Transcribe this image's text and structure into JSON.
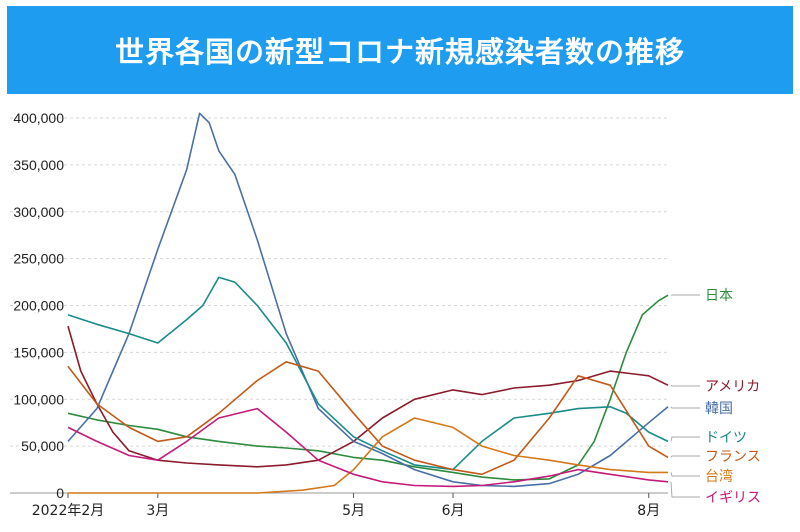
{
  "header": {
    "title": "世界各国の新型コロナ新規感染者数の推移"
  },
  "chart_data": {
    "type": "line",
    "title": "世界各国の新型コロナ新規感染者数の推移",
    "ylim": [
      0,
      400000
    ],
    "y_ticks": [
      0,
      50000,
      100000,
      150000,
      200000,
      250000,
      300000,
      350000,
      400000
    ],
    "y_tick_labels": [
      "0",
      "50,000",
      "100,000",
      "150,000",
      "200,000",
      "250,000",
      "300,000",
      "350,000",
      "400,000"
    ],
    "x_domain": [
      "2022-02-01",
      "2022-08-07"
    ],
    "x_ticks": [
      "2022-02-01",
      "2022-03-01",
      "2022-05-01",
      "2022-06-01",
      "2022-08-01"
    ],
    "x_tick_labels": [
      "2022年2月",
      "3月",
      "5月",
      "6月",
      "8月"
    ],
    "grid": true,
    "legend": "right-end labels",
    "series": [
      {
        "name": "日本",
        "color": "#2e8b3e",
        "x": [
          "2022-02-01",
          "2022-02-10",
          "2022-02-20",
          "2022-03-01",
          "2022-03-10",
          "2022-03-20",
          "2022-04-01",
          "2022-04-10",
          "2022-04-20",
          "2022-05-01",
          "2022-05-10",
          "2022-05-20",
          "2022-06-01",
          "2022-06-10",
          "2022-06-20",
          "2022-07-01",
          "2022-07-10",
          "2022-07-15",
          "2022-07-20",
          "2022-07-25",
          "2022-07-30",
          "2022-08-04",
          "2022-08-07"
        ],
        "values": [
          85000,
          78000,
          72000,
          68000,
          60000,
          55000,
          50000,
          48000,
          45000,
          38000,
          35000,
          28000,
          22000,
          17000,
          14000,
          15000,
          30000,
          55000,
          100000,
          150000,
          190000,
          205000,
          211000
        ]
      },
      {
        "name": "アメリカ",
        "color": "#8b1a2b",
        "x": [
          "2022-02-01",
          "2022-02-05",
          "2022-02-10",
          "2022-02-15",
          "2022-02-20",
          "2022-03-01",
          "2022-03-10",
          "2022-03-20",
          "2022-04-01",
          "2022-04-10",
          "2022-04-20",
          "2022-05-01",
          "2022-05-10",
          "2022-05-20",
          "2022-06-01",
          "2022-06-10",
          "2022-06-20",
          "2022-07-01",
          "2022-07-10",
          "2022-07-20",
          "2022-08-01",
          "2022-08-07"
        ],
        "values": [
          178000,
          130000,
          95000,
          65000,
          45000,
          35000,
          32000,
          30000,
          28000,
          30000,
          35000,
          55000,
          80000,
          100000,
          110000,
          105000,
          112000,
          115000,
          120000,
          130000,
          125000,
          115000
        ]
      },
      {
        "name": "韓国",
        "color": "#4a6fa5",
        "x": [
          "2022-02-01",
          "2022-02-10",
          "2022-02-20",
          "2022-03-01",
          "2022-03-10",
          "2022-03-14",
          "2022-03-17",
          "2022-03-20",
          "2022-03-25",
          "2022-04-01",
          "2022-04-10",
          "2022-04-20",
          "2022-05-01",
          "2022-05-10",
          "2022-05-20",
          "2022-06-01",
          "2022-06-10",
          "2022-06-20",
          "2022-07-01",
          "2022-07-10",
          "2022-07-20",
          "2022-08-01",
          "2022-08-07"
        ],
        "values": [
          55000,
          90000,
          170000,
          260000,
          345000,
          405000,
          395000,
          365000,
          340000,
          270000,
          170000,
          90000,
          55000,
          42000,
          25000,
          12000,
          8000,
          7000,
          10000,
          20000,
          40000,
          75000,
          92000
        ]
      },
      {
        "name": "ドイツ",
        "color": "#1a8a8a",
        "x": [
          "2022-02-01",
          "2022-02-10",
          "2022-02-20",
          "2022-03-01",
          "2022-03-10",
          "2022-03-15",
          "2022-03-20",
          "2022-03-25",
          "2022-04-01",
          "2022-04-10",
          "2022-04-20",
          "2022-05-01",
          "2022-05-10",
          "2022-05-20",
          "2022-06-01",
          "2022-06-10",
          "2022-06-20",
          "2022-07-01",
          "2022-07-10",
          "2022-07-20",
          "2022-07-25",
          "2022-08-01",
          "2022-08-07"
        ],
        "values": [
          190000,
          180000,
          170000,
          160000,
          185000,
          200000,
          230000,
          225000,
          200000,
          160000,
          95000,
          60000,
          45000,
          30000,
          25000,
          55000,
          80000,
          85000,
          90000,
          92000,
          85000,
          65000,
          55000
        ]
      },
      {
        "name": "フランス",
        "color": "#c05a1a",
        "x": [
          "2022-02-01",
          "2022-02-10",
          "2022-02-20",
          "2022-03-01",
          "2022-03-10",
          "2022-03-20",
          "2022-04-01",
          "2022-04-10",
          "2022-04-20",
          "2022-05-01",
          "2022-05-10",
          "2022-05-20",
          "2022-06-01",
          "2022-06-10",
          "2022-06-20",
          "2022-07-01",
          "2022-07-10",
          "2022-07-20",
          "2022-08-01",
          "2022-08-07"
        ],
        "values": [
          135000,
          95000,
          70000,
          55000,
          60000,
          85000,
          120000,
          140000,
          130000,
          85000,
          50000,
          35000,
          25000,
          20000,
          35000,
          80000,
          125000,
          115000,
          50000,
          38000
        ]
      },
      {
        "name": "台湾",
        "color": "#d4781a",
        "x": [
          "2022-02-01",
          "2022-03-01",
          "2022-04-01",
          "2022-04-15",
          "2022-04-25",
          "2022-05-01",
          "2022-05-10",
          "2022-05-20",
          "2022-06-01",
          "2022-06-10",
          "2022-06-20",
          "2022-07-01",
          "2022-07-10",
          "2022-07-20",
          "2022-08-01",
          "2022-08-07"
        ],
        "values": [
          0,
          0,
          0,
          3000,
          8000,
          25000,
          60000,
          80000,
          70000,
          50000,
          40000,
          35000,
          30000,
          25000,
          22000,
          22000
        ]
      },
      {
        "name": "イギリス",
        "color": "#c41a7a",
        "x": [
          "2022-02-01",
          "2022-02-10",
          "2022-02-20",
          "2022-03-01",
          "2022-03-10",
          "2022-03-20",
          "2022-04-01",
          "2022-04-10",
          "2022-04-20",
          "2022-05-01",
          "2022-05-10",
          "2022-05-20",
          "2022-06-01",
          "2022-06-10",
          "2022-06-20",
          "2022-07-01",
          "2022-07-10",
          "2022-07-20",
          "2022-08-01",
          "2022-08-07"
        ],
        "values": [
          70000,
          55000,
          40000,
          35000,
          55000,
          80000,
          90000,
          65000,
          35000,
          20000,
          12000,
          8000,
          7000,
          8000,
          12000,
          18000,
          25000,
          20000,
          14000,
          12000
        ]
      }
    ]
  }
}
